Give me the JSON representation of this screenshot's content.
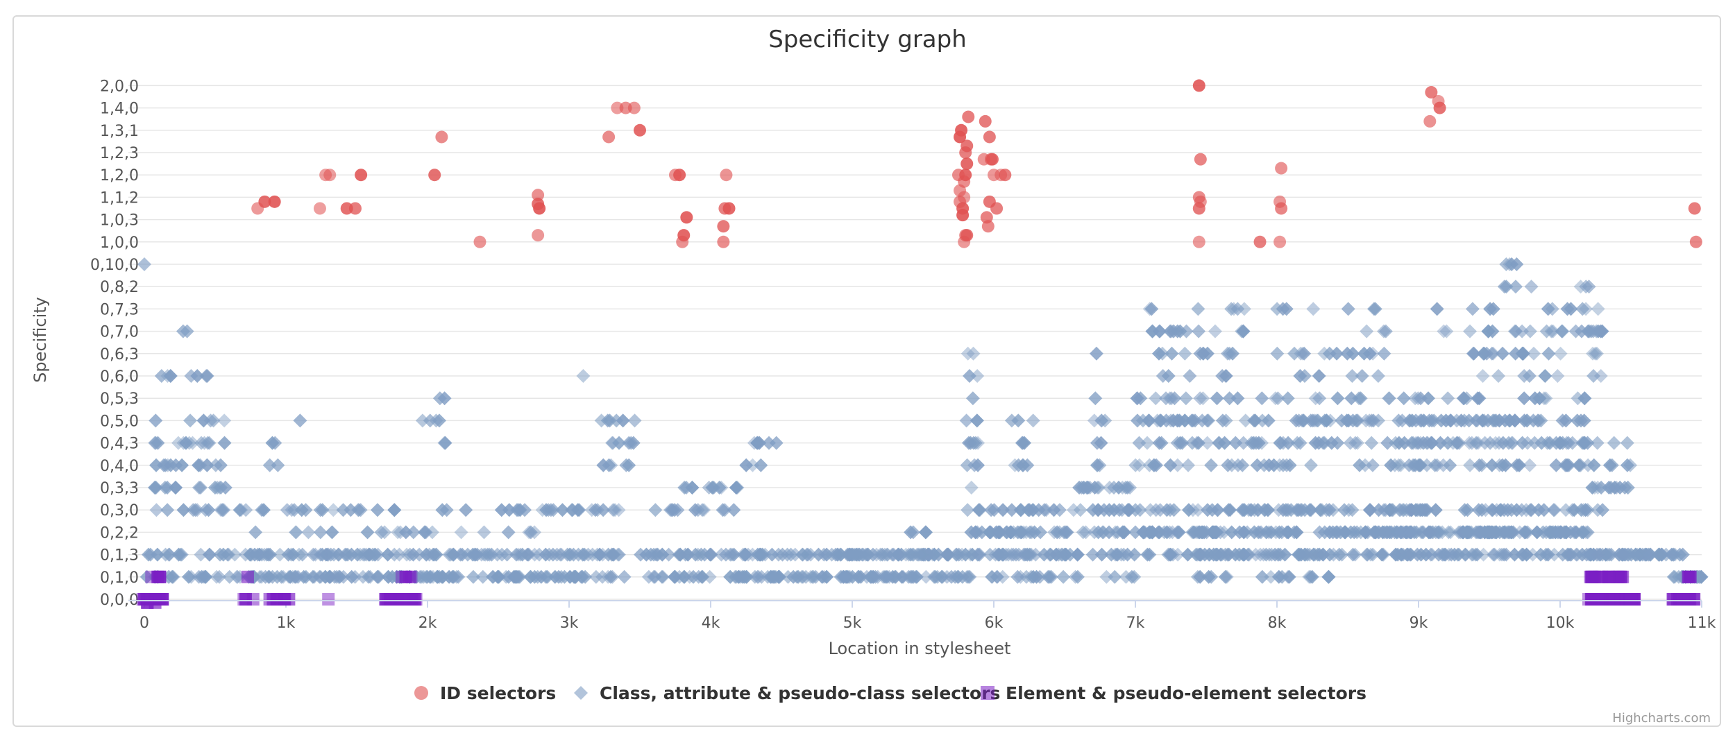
{
  "chart_data": {
    "type": "scatter",
    "title": "Specificity graph",
    "xlabel": "Location in stylesheet",
    "ylabel": "Specificity",
    "xlim": [
      -100,
      11000
    ],
    "x_ticks": [
      {
        "value": 0,
        "label": "0"
      },
      {
        "value": 1000,
        "label": "1k"
      },
      {
        "value": 2000,
        "label": "2k"
      },
      {
        "value": 3000,
        "label": "3k"
      },
      {
        "value": 4000,
        "label": "4k"
      },
      {
        "value": 5000,
        "label": "5k"
      },
      {
        "value": 6000,
        "label": "6k"
      },
      {
        "value": 7000,
        "label": "7k"
      },
      {
        "value": 8000,
        "label": "8k"
      },
      {
        "value": 9000,
        "label": "9k"
      },
      {
        "value": 10000,
        "label": "10k"
      },
      {
        "value": 11000,
        "label": "11k"
      }
    ],
    "y_categories": [
      "0,0,0",
      "0,1,0",
      "0,1,3",
      "0,2,2",
      "0,3,0",
      "0,3,3",
      "0,4,0",
      "0,4,3",
      "0,5,0",
      "0,5,3",
      "0,6,0",
      "0,6,3",
      "0,7,0",
      "0,7,3",
      "0,8,2",
      "0,10,0",
      "1,0,0",
      "1,0,3",
      "1,1,2",
      "1,2,0",
      "1,2,3",
      "1,3,1",
      "1,4,0",
      "2,0,0"
    ],
    "grid": true,
    "legend_position": "bottom-center",
    "credits": "Highcharts.com",
    "series": [
      {
        "name": "ID selectors",
        "marker": "circle",
        "color": "#e05252",
        "points": [
          [
            800,
            17.5
          ],
          [
            850,
            17.8
          ],
          [
            920,
            17.8
          ],
          [
            1240,
            17.5
          ],
          [
            1280,
            19
          ],
          [
            1310,
            19
          ],
          [
            1430,
            17.5
          ],
          [
            1490,
            17.5
          ],
          [
            1530,
            19
          ],
          [
            2050,
            19
          ],
          [
            2100,
            20.7
          ],
          [
            2370,
            16
          ],
          [
            2780,
            18.1
          ],
          [
            2780,
            17.7
          ],
          [
            2790,
            17.5
          ],
          [
            2780,
            16.3
          ],
          [
            3280,
            20.7
          ],
          [
            3340,
            22
          ],
          [
            3400,
            22
          ],
          [
            3460,
            22
          ],
          [
            3500,
            21
          ],
          [
            3750,
            19
          ],
          [
            3780,
            19
          ],
          [
            3800,
            16
          ],
          [
            3810,
            16.3
          ],
          [
            3830,
            17.1
          ],
          [
            4090,
            16
          ],
          [
            4090,
            16.7
          ],
          [
            4100,
            17.5
          ],
          [
            4110,
            19
          ],
          [
            4130,
            17.5
          ],
          [
            5750,
            19
          ],
          [
            5760,
            20.7
          ],
          [
            5770,
            21
          ],
          [
            5780,
            17.5
          ],
          [
            5790,
            18
          ],
          [
            5800,
            19
          ],
          [
            5810,
            19.5
          ],
          [
            5800,
            16.3
          ],
          [
            5790,
            16
          ],
          [
            5810,
            16.3
          ],
          [
            5820,
            21.6
          ],
          [
            5760,
            17.8
          ],
          [
            5760,
            18.3
          ],
          [
            5780,
            17.2
          ],
          [
            5790,
            18.7
          ],
          [
            5800,
            20
          ],
          [
            5810,
            20.3
          ],
          [
            5940,
            21.4
          ],
          [
            5950,
            17.1
          ],
          [
            5960,
            16.7
          ],
          [
            5970,
            20.7
          ],
          [
            5980,
            19.7
          ],
          [
            5990,
            19.7
          ],
          [
            6000,
            19
          ],
          [
            6020,
            17.5
          ],
          [
            6050,
            19
          ],
          [
            6080,
            19
          ],
          [
            5930,
            19.7
          ],
          [
            5970,
            17.8
          ],
          [
            7450,
            23
          ],
          [
            7450,
            18
          ],
          [
            7450,
            17.5
          ],
          [
            7460,
            19.7
          ],
          [
            7450,
            16
          ],
          [
            7460,
            17.8
          ],
          [
            7880,
            16
          ],
          [
            8020,
            16
          ],
          [
            8020,
            17.8
          ],
          [
            8030,
            17.5
          ],
          [
            8030,
            19.3
          ],
          [
            9080,
            21.4
          ],
          [
            9090,
            22.7
          ],
          [
            9140,
            22.3
          ],
          [
            9150,
            22
          ],
          [
            10950,
            17.5
          ],
          [
            10960,
            16
          ]
        ]
      },
      {
        "name": "Class, attribute & pseudo-class selectors",
        "marker": "diamond",
        "color": "#7f9dc3",
        "clusters": [
          [
            0,
            600,
            1,
            2,
            35
          ],
          [
            0,
            150,
            15,
            15,
            1
          ],
          [
            250,
            350,
            12,
            12,
            2
          ],
          [
            50,
            600,
            4,
            8,
            60
          ],
          [
            50,
            500,
            10,
            10,
            8
          ],
          [
            600,
            1300,
            1,
            2,
            60
          ],
          [
            600,
            1300,
            3,
            4,
            18
          ],
          [
            850,
            950,
            6,
            7,
            4
          ],
          [
            1100,
            1100,
            8,
            8,
            1
          ],
          [
            1300,
            2800,
            1,
            2,
            140
          ],
          [
            1300,
            2800,
            3,
            4,
            35
          ],
          [
            1950,
            2150,
            6,
            9,
            8
          ],
          [
            2800,
            3400,
            1,
            2,
            50
          ],
          [
            2800,
            3400,
            4,
            4,
            18
          ],
          [
            3200,
            3500,
            6,
            8,
            18
          ],
          [
            3100,
            3100,
            10,
            10,
            1
          ],
          [
            3500,
            4900,
            1,
            2,
            120
          ],
          [
            3600,
            4200,
            4,
            5,
            25
          ],
          [
            4200,
            4500,
            6,
            8,
            10
          ],
          [
            4900,
            5800,
            1,
            2,
            110
          ],
          [
            5400,
            5600,
            2,
            3,
            10
          ],
          [
            5800,
            6600,
            1,
            4,
            120
          ],
          [
            5800,
            5900,
            5,
            11,
            18
          ],
          [
            6100,
            6300,
            6,
            8,
            12
          ],
          [
            6600,
            7000,
            1,
            5,
            60
          ],
          [
            6700,
            6800,
            6,
            12,
            10
          ],
          [
            7000,
            9000,
            2,
            4,
            240
          ],
          [
            7000,
            9000,
            6,
            9,
            160
          ],
          [
            7100,
            7800,
            10,
            13,
            40
          ],
          [
            8000,
            8800,
            10,
            13,
            30
          ],
          [
            7400,
            8400,
            1,
            2,
            40
          ],
          [
            8800,
            10200,
            2,
            4,
            220
          ],
          [
            8800,
            10200,
            6,
            9,
            150
          ],
          [
            9300,
            10100,
            10,
            13,
            40
          ],
          [
            9600,
            9800,
            14,
            15,
            8
          ],
          [
            9100,
            9400,
            12,
            13,
            5
          ],
          [
            10100,
            10300,
            10,
            14,
            22
          ],
          [
            10200,
            10500,
            4,
            8,
            22
          ],
          [
            10200,
            10900,
            2,
            2,
            60
          ],
          [
            10800,
            11000,
            1,
            1,
            25
          ]
        ]
      },
      {
        "name": "Element & pseudo-element selectors",
        "marker": "square",
        "color": "#7b1fc4",
        "clusters": [
          [
            -20,
            140,
            0,
            0,
            24
          ],
          [
            20,
            120,
            1,
            1,
            4
          ],
          [
            20,
            100,
            -0.15,
            -0.15,
            3
          ],
          [
            700,
            800,
            0,
            0,
            3
          ],
          [
            730,
            760,
            1,
            1,
            1
          ],
          [
            880,
            1040,
            0,
            0,
            10
          ],
          [
            1300,
            1300,
            0,
            0,
            1
          ],
          [
            1700,
            1920,
            0,
            0,
            26
          ],
          [
            1800,
            1900,
            1,
            1,
            4
          ],
          [
            10190,
            10530,
            0,
            0,
            70
          ],
          [
            10210,
            10450,
            1,
            1,
            16
          ],
          [
            10790,
            10960,
            0,
            0,
            18
          ],
          [
            10900,
            10950,
            1,
            1,
            3
          ]
        ]
      }
    ]
  }
}
